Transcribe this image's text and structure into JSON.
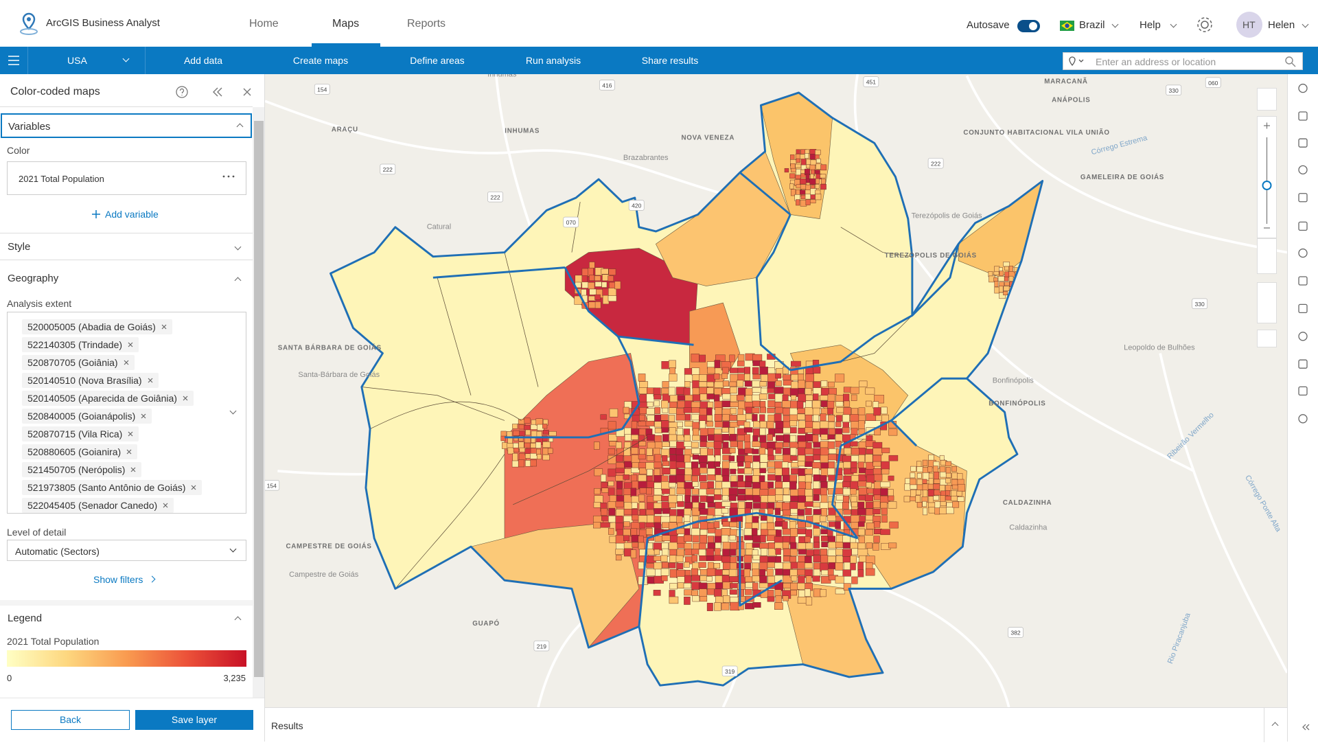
{
  "header": {
    "app_title": "ArcGIS Business Analyst",
    "tabs": [
      "Home",
      "Maps",
      "Reports"
    ],
    "autosave": "Autosave",
    "country": "Brazil",
    "help": "Help",
    "user_initials": "HT",
    "user_name": "Helen"
  },
  "toolbar": {
    "region": "USA",
    "menu": [
      "Add data",
      "Create maps",
      "Define areas",
      "Run analysis",
      "Share results"
    ],
    "search_placeholder": "Enter an address or location"
  },
  "panel": {
    "title": "Color-coded maps",
    "variables": {
      "heading": "Variables",
      "color_label": "Color",
      "variable": "2021 Total Population",
      "add": "Add variable"
    },
    "style": {
      "heading": "Style"
    },
    "geography": {
      "heading": "Geography",
      "extent_label": "Analysis extent",
      "extents": [
        "520005005 (Abadia de Goiás)",
        "522140305 (Trindade)",
        "520870705 (Goiânia)",
        "520140510 (Nova Brasília)",
        "520140505 (Aparecida de Goiânia)",
        "520840005 (Goianápolis)",
        "520870715 (Vila Rica)",
        "520880605 (Goianira)",
        "521450705 (Nerópolis)",
        "521973805 (Santo Antônio de Goiás)",
        "522045405 (Senador Canedo)"
      ],
      "detail_label": "Level of detail",
      "detail_value": "Automatic (Sectors)",
      "filters": "Show filters"
    },
    "legend": {
      "heading": "Legend",
      "title": "2021 Total Population",
      "min": 0,
      "max": {
        "value": 3235,
        "label": "3,235"
      }
    },
    "buttons": {
      "back": "Back",
      "save": "Save layer"
    }
  },
  "map": {
    "places": [
      "Inhumas",
      "INHUMAS",
      "ARAÇU",
      "NOVA VENEZA",
      "Brazabrantes",
      "Catural",
      "SANTA BÁRBARA DE GOIÁS",
      "Santa-Bárbara de Goiás",
      "CAMPESTRE DE GOIÁS",
      "Campestre de Goiás",
      "GUAPÓ",
      "MARACANÃ",
      "ANÁPOLIS",
      "CONJUNTO HABITACIONAL VILA UNIÃO",
      "GAMELEIRA DE GOIÁS",
      "Terezópolis de Goiás",
      "TEREZÓPOLIS DE GOIÁS",
      "Leopoldo de Bulhões",
      "Bonfinópolis",
      "BONFINÓPOLIS",
      "CALDAZINHA",
      "Caldazinha",
      "Córrego Estrema",
      "Ribeirão Vermelho",
      "Córrego Ponte Alta",
      "Rio Piracanjuba"
    ],
    "roads": [
      "154",
      "416",
      "451",
      "330",
      "060",
      "222",
      "222",
      "420",
      "070",
      "222",
      "154",
      "219",
      "319",
      "382",
      "330"
    ]
  },
  "results": {
    "title": "Results"
  }
}
